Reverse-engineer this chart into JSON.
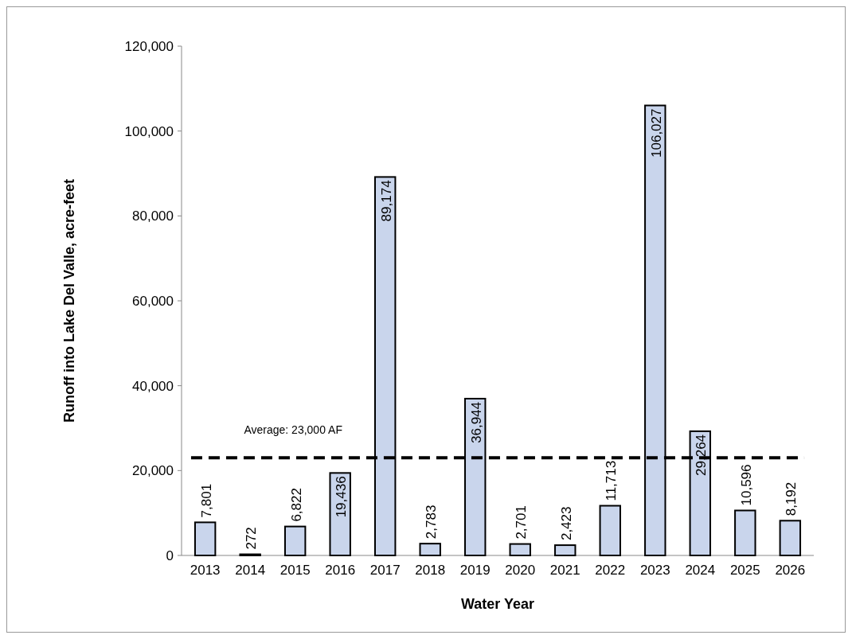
{
  "chart_data": {
    "type": "bar",
    "xlabel": "Water Year",
    "ylabel": "Runoff into Lake Del Valle, acre-feet",
    "categories": [
      "2013",
      "2014",
      "2015",
      "2016",
      "2017",
      "2018",
      "2019",
      "2020",
      "2021",
      "2022",
      "2023",
      "2024",
      "2025",
      "2026"
    ],
    "values": [
      7801,
      272,
      6822,
      19436,
      89174,
      2783,
      36944,
      2701,
      2423,
      11713,
      106027,
      29264,
      10596,
      8192
    ],
    "value_labels": [
      "7,801",
      "272",
      "6,822",
      "19,436",
      "89,174",
      "2,783",
      "36,944",
      "2,701",
      "2,423",
      "11,713",
      "106,027",
      "29,264",
      "10,596",
      "8,192"
    ],
    "color": "#c9d5ec",
    "ylim": [
      0,
      120000
    ],
    "yticks": [
      {
        "value": 0,
        "label": "0"
      },
      {
        "value": 20000,
        "label": "20,000"
      },
      {
        "value": 40000,
        "label": "40,000"
      },
      {
        "value": 60000,
        "label": "60,000"
      },
      {
        "value": 80000,
        "label": "80,000"
      },
      {
        "value": 100000,
        "label": "100,000"
      },
      {
        "value": 120000,
        "label": "120,000"
      }
    ],
    "ref_lines": [
      {
        "axis": "y",
        "value": 23000,
        "label": "Average: 23,000 AF",
        "color": "#000000",
        "line_style": "dashed"
      }
    ]
  }
}
